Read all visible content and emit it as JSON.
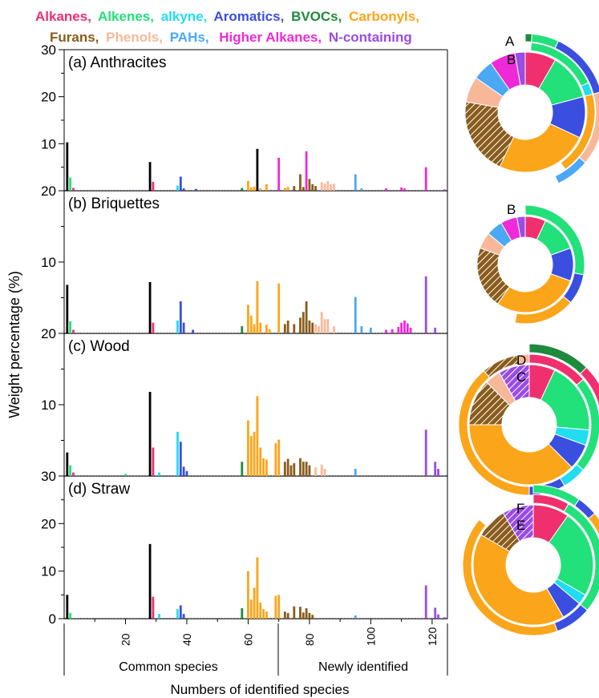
{
  "legend": [
    {
      "label": "Alkanes,",
      "color": "#f0306e"
    },
    {
      "label": "Alkenes,",
      "color": "#22e07a"
    },
    {
      "label": "alkyne,",
      "color": "#22dcf0"
    },
    {
      "label": "Aromatics,",
      "color": "#3a4fe0"
    },
    {
      "label": "BVOCs,",
      "color": "#1e8a3c"
    },
    {
      "label": "Carbonyls,",
      "color": "#fba51a"
    },
    {
      "label": "Furans,",
      "color": "#8a5c1c"
    },
    {
      "label": "Phenols,",
      "color": "#f7b89a"
    },
    {
      "label": "PAHs,",
      "color": "#4aa8f5"
    },
    {
      "label": "Higher Alkanes,",
      "color": "#ee2ad8"
    },
    {
      "label": "N-containing",
      "color": "#9a4ce6"
    }
  ],
  "axes": {
    "ylabel": "Weight percentage (%)",
    "xlabel": "Numbers of identified species",
    "section_common": "Common species",
    "section_new": "Newly identified"
  },
  "panel_titles": [
    "(a) Anthracites",
    "(b) Briquettes",
    "(c) Wood",
    "(d) Straw"
  ],
  "ring_labels": [
    "A",
    "B",
    "B",
    "D",
    "C",
    "F",
    "E"
  ],
  "chart_data": [
    {
      "type": "bar",
      "title": "(a) Anthracites",
      "ylim": [
        0,
        30
      ],
      "yticks": [
        10,
        20,
        30
      ],
      "xticks": [
        20,
        40,
        60,
        80,
        100,
        120
      ],
      "bars": [
        [
          1,
          10.3,
          22
        ],
        [
          2,
          2.8,
          1
        ],
        [
          3,
          0.6,
          0
        ],
        [
          28,
          6.1,
          12
        ],
        [
          29,
          1.9,
          0
        ],
        [
          37,
          1.1,
          2
        ],
        [
          38,
          3.0,
          3
        ],
        [
          39,
          0.5,
          3
        ],
        [
          43,
          0.4,
          3
        ],
        [
          58,
          0.6,
          4
        ],
        [
          60,
          2.1,
          5
        ],
        [
          61,
          0.7,
          5
        ],
        [
          62,
          0.9,
          5
        ],
        [
          63,
          8.9,
          15.3
        ],
        [
          64,
          0.5,
          5
        ],
        [
          66,
          1.4,
          5
        ],
        [
          70,
          7.0,
          9
        ],
        [
          72,
          0.6,
          5
        ],
        [
          73,
          0.8,
          5
        ],
        [
          75,
          1.0,
          6
        ],
        [
          77,
          3.5,
          6
        ],
        [
          78,
          0.8,
          6
        ],
        [
          79,
          8.4,
          9
        ],
        [
          80,
          2.5,
          6
        ],
        [
          81,
          1.4,
          6
        ],
        [
          82,
          1.0,
          6
        ],
        [
          84,
          1.8,
          7
        ],
        [
          85,
          1.5,
          7
        ],
        [
          86,
          2.0,
          7
        ],
        [
          87,
          1.4,
          7
        ],
        [
          88,
          1.5,
          7
        ],
        [
          95,
          3.5,
          8
        ],
        [
          97,
          0.5,
          8
        ],
        [
          105,
          0.5,
          9
        ],
        [
          110,
          0.7,
          9
        ],
        [
          111,
          0.5,
          9
        ],
        [
          118,
          5.0,
          9
        ],
        [
          124,
          0.3,
          10
        ]
      ]
    },
    {
      "type": "bar",
      "title": "(b) Briquettes",
      "ylim": [
        0,
        20
      ],
      "yticks": [
        10,
        20
      ],
      "xticks": [
        20,
        40,
        60,
        80,
        100,
        120
      ],
      "bars": [
        [
          1,
          6.8,
          22
        ],
        [
          2,
          1.7,
          1
        ],
        [
          3,
          0.5,
          0
        ],
        [
          28,
          7.2,
          12
        ],
        [
          29,
          1.5,
          0
        ],
        [
          37,
          1.8,
          2
        ],
        [
          38,
          4.5,
          3
        ],
        [
          39,
          1.5,
          3
        ],
        [
          42,
          0.5,
          3
        ],
        [
          58,
          1.0,
          4
        ],
        [
          60,
          4.0,
          5
        ],
        [
          61,
          2.5,
          5
        ],
        [
          62,
          1.3,
          5
        ],
        [
          63,
          7.3,
          5
        ],
        [
          64,
          1.5,
          5
        ],
        [
          66,
          1.2,
          5
        ],
        [
          67,
          0.6,
          5
        ],
        [
          70,
          7.0,
          5
        ],
        [
          72,
          1.3,
          6
        ],
        [
          73,
          1.8,
          6
        ],
        [
          75,
          1.3,
          6
        ],
        [
          77,
          2.2,
          6
        ],
        [
          78,
          3.0,
          6
        ],
        [
          79,
          4.5,
          6
        ],
        [
          80,
          1.8,
          6
        ],
        [
          81,
          1.5,
          6
        ],
        [
          82,
          1.3,
          7
        ],
        [
          83,
          1.0,
          7
        ],
        [
          84,
          3.0,
          7
        ],
        [
          85,
          2.0,
          7
        ],
        [
          86,
          2.0,
          7
        ],
        [
          88,
          1.0,
          7
        ],
        [
          95,
          5.1,
          8
        ],
        [
          97,
          1.0,
          8
        ],
        [
          100,
          0.8,
          8
        ],
        [
          105,
          0.5,
          9
        ],
        [
          107,
          0.6,
          9
        ],
        [
          109,
          0.9,
          9
        ],
        [
          110,
          1.5,
          9
        ],
        [
          111,
          1.8,
          9
        ],
        [
          112,
          1.4,
          9
        ],
        [
          113,
          0.8,
          9
        ],
        [
          118,
          8.0,
          10
        ],
        [
          121,
          0.8,
          10
        ]
      ]
    },
    {
      "type": "bar",
      "title": "(c) Wood",
      "ylim": [
        0,
        20
      ],
      "yticks": [
        10,
        20
      ],
      "xticks": [
        20,
        40,
        60,
        80,
        100,
        120
      ],
      "bars": [
        [
          1,
          3.3,
          22
        ],
        [
          2,
          1.5,
          1
        ],
        [
          3,
          0.5,
          0
        ],
        [
          20,
          0.3,
          1
        ],
        [
          28,
          11.8,
          12
        ],
        [
          29,
          4.0,
          0
        ],
        [
          31,
          0.5,
          2
        ],
        [
          37,
          6.2,
          2
        ],
        [
          38,
          4.8,
          3
        ],
        [
          39,
          1.3,
          3
        ],
        [
          40,
          0.7,
          3
        ],
        [
          58,
          2.0,
          4
        ],
        [
          60,
          7.8,
          5
        ],
        [
          61,
          5.6,
          5
        ],
        [
          62,
          6.2,
          5
        ],
        [
          63,
          11.2,
          5
        ],
        [
          64,
          4.0,
          5
        ],
        [
          65,
          2.5,
          5
        ],
        [
          66,
          2.3,
          5
        ],
        [
          69,
          4.6,
          5
        ],
        [
          70,
          5.1,
          5
        ],
        [
          72,
          2.0,
          6
        ],
        [
          73,
          2.4,
          6
        ],
        [
          74,
          1.5,
          6
        ],
        [
          75,
          1.8,
          6
        ],
        [
          77,
          2.5,
          6
        ],
        [
          78,
          2.0,
          6
        ],
        [
          79,
          2.0,
          6
        ],
        [
          80,
          1.5,
          6
        ],
        [
          82,
          1.2,
          7
        ],
        [
          84,
          1.6,
          7
        ],
        [
          85,
          1.0,
          7
        ],
        [
          95,
          1.0,
          8
        ],
        [
          118,
          6.5,
          10
        ],
        [
          121,
          2.0,
          10
        ],
        [
          122,
          1.0,
          10
        ]
      ]
    },
    {
      "type": "bar",
      "title": "(d) Straw",
      "ylim": [
        0,
        30
      ],
      "yticks": [
        0,
        10,
        20,
        30
      ],
      "xticks": [
        20,
        40,
        60,
        80,
        100,
        120
      ],
      "bars": [
        [
          1,
          5.0,
          22
        ],
        [
          2,
          1.2,
          1
        ],
        [
          28,
          15.7,
          12
        ],
        [
          29,
          4.6,
          0
        ],
        [
          31,
          1.0,
          2
        ],
        [
          37,
          2.0,
          2
        ],
        [
          38,
          2.8,
          3
        ],
        [
          39,
          1.0,
          3
        ],
        [
          58,
          2.2,
          4
        ],
        [
          60,
          10.0,
          5
        ],
        [
          61,
          4.0,
          5
        ],
        [
          62,
          6.5,
          5
        ],
        [
          63,
          12.9,
          5
        ],
        [
          64,
          3.4,
          5
        ],
        [
          65,
          2.0,
          5
        ],
        [
          66,
          1.5,
          5
        ],
        [
          69,
          4.8,
          5
        ],
        [
          70,
          5.0,
          5
        ],
        [
          72,
          1.5,
          6
        ],
        [
          73,
          1.2,
          6
        ],
        [
          75,
          2.6,
          6
        ],
        [
          77,
          2.5,
          6
        ],
        [
          78,
          1.3,
          6
        ],
        [
          79,
          2.2,
          6
        ],
        [
          80,
          1.2,
          6
        ],
        [
          81,
          0.8,
          6
        ],
        [
          95,
          0.7,
          8
        ],
        [
          118,
          7.0,
          10
        ],
        [
          121,
          2.3,
          10
        ],
        [
          122,
          0.9,
          10
        ],
        [
          124,
          0.3,
          10
        ]
      ]
    }
  ]
}
